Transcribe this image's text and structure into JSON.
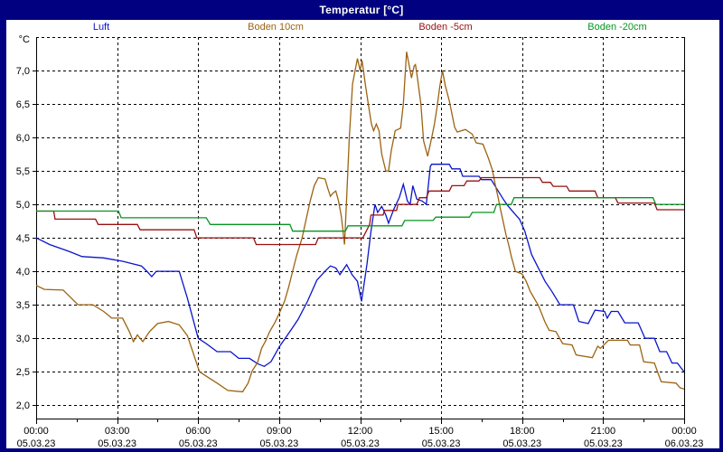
{
  "window": {
    "title": "Temperatur [°C]"
  },
  "colors": {
    "frame": "#000080",
    "panel_bg": "#ffffff",
    "grid": "#000000",
    "axis_text": "#000000",
    "luft": "#0a14cc",
    "boden10": "#9c6312",
    "boden5": "#991111",
    "boden20": "#089422"
  },
  "chart_data": {
    "type": "line",
    "title": "Temperatur [°C]",
    "y_unit_label": "°C",
    "legend": [
      {
        "label": "Luft",
        "color_key": "luft"
      },
      {
        "label": "Boden 10cm",
        "color_key": "boden10"
      },
      {
        "label": "Boden -5cm",
        "color_key": "boden5"
      },
      {
        "label": "Boden -20cm",
        "color_key": "boden20"
      }
    ],
    "x_axis": {
      "range_hours": [
        0,
        24
      ],
      "major_tick_interval_hours": 3,
      "minor_tick_interval_hours": 1.5,
      "major_ticks": [
        {
          "time": "00:00",
          "date": "05.03.23"
        },
        {
          "time": "03:00",
          "date": "05.03.23"
        },
        {
          "time": "06:00",
          "date": "05.03.23"
        },
        {
          "time": "09:00",
          "date": "05.03.23"
        },
        {
          "time": "12:00",
          "date": "05.03.23"
        },
        {
          "time": "15:00",
          "date": "05.03.23"
        },
        {
          "time": "18:00",
          "date": "05.03.23"
        },
        {
          "time": "21:00",
          "date": "05.03.23"
        },
        {
          "time": "00:00",
          "date": "06.03.23"
        }
      ]
    },
    "y_axis": {
      "min": 1.8,
      "max": 7.5,
      "gridline_step": 0.5,
      "grid_top_value": 7.5,
      "ticks": [
        {
          "value": 7.0,
          "label": "7,0"
        },
        {
          "value": 6.5,
          "label": "6,5"
        },
        {
          "value": 6.0,
          "label": "6,0"
        },
        {
          "value": 5.5,
          "label": "5,5"
        },
        {
          "value": 5.0,
          "label": "5,0"
        },
        {
          "value": 4.5,
          "label": "4,5"
        },
        {
          "value": 4.0,
          "label": "4,0"
        },
        {
          "value": 3.5,
          "label": "3,5"
        },
        {
          "value": 3.0,
          "label": "3,0"
        },
        {
          "value": 2.5,
          "label": "2,5"
        },
        {
          "value": 2.0,
          "label": "2,0"
        }
      ]
    },
    "series": [
      {
        "name": "Luft",
        "color_key": "luft",
        "points": [
          [
            0,
            4.5
          ],
          [
            0.5,
            4.4
          ],
          [
            1.2,
            4.3
          ],
          [
            1.7,
            4.22
          ],
          [
            2.5,
            4.2
          ],
          [
            3.2,
            4.15
          ],
          [
            3.9,
            4.08
          ],
          [
            4.1,
            4.0
          ],
          [
            4.28,
            3.92
          ],
          [
            4.45,
            4.0
          ],
          [
            5.3,
            4.0
          ],
          [
            5.6,
            3.6
          ],
          [
            6.0,
            3.0
          ],
          [
            6.3,
            2.92
          ],
          [
            6.7,
            2.8
          ],
          [
            7.2,
            2.8
          ],
          [
            7.5,
            2.7
          ],
          [
            7.9,
            2.7
          ],
          [
            8.2,
            2.62
          ],
          [
            8.45,
            2.58
          ],
          [
            8.7,
            2.65
          ],
          [
            9.0,
            2.87
          ],
          [
            9.4,
            3.1
          ],
          [
            9.7,
            3.28
          ],
          [
            10.05,
            3.55
          ],
          [
            10.4,
            3.87
          ],
          [
            10.7,
            4.0
          ],
          [
            10.9,
            4.08
          ],
          [
            11.1,
            4.05
          ],
          [
            11.25,
            3.95
          ],
          [
            11.5,
            4.1
          ],
          [
            11.7,
            3.95
          ],
          [
            11.9,
            3.85
          ],
          [
            12.05,
            3.55
          ],
          [
            12.25,
            4.1
          ],
          [
            12.4,
            4.6
          ],
          [
            12.55,
            5.0
          ],
          [
            12.65,
            4.88
          ],
          [
            12.8,
            4.97
          ],
          [
            12.95,
            4.84
          ],
          [
            13.05,
            4.72
          ],
          [
            13.25,
            4.93
          ],
          [
            13.45,
            5.1
          ],
          [
            13.6,
            5.3
          ],
          [
            13.75,
            5.05
          ],
          [
            13.85,
            5.0
          ],
          [
            13.95,
            5.28
          ],
          [
            14.1,
            5.08
          ],
          [
            14.3,
            5.05
          ],
          [
            14.45,
            5.0
          ],
          [
            14.6,
            5.57
          ],
          [
            14.65,
            5.6
          ],
          [
            15.3,
            5.6
          ],
          [
            15.4,
            5.53
          ],
          [
            15.7,
            5.53
          ],
          [
            15.8,
            5.42
          ],
          [
            16.4,
            5.42
          ],
          [
            16.5,
            5.37
          ],
          [
            16.85,
            5.37
          ],
          [
            17.05,
            5.24
          ],
          [
            17.3,
            5.08
          ],
          [
            17.45,
            4.99
          ],
          [
            17.7,
            4.87
          ],
          [
            17.9,
            4.78
          ],
          [
            18.1,
            4.6
          ],
          [
            18.35,
            4.25
          ],
          [
            18.6,
            4.05
          ],
          [
            18.85,
            3.85
          ],
          [
            19.1,
            3.7
          ],
          [
            19.4,
            3.5
          ],
          [
            19.9,
            3.5
          ],
          [
            20.1,
            3.25
          ],
          [
            20.45,
            3.22
          ],
          [
            20.7,
            3.42
          ],
          [
            21.05,
            3.4
          ],
          [
            21.15,
            3.3
          ],
          [
            21.3,
            3.4
          ],
          [
            21.55,
            3.4
          ],
          [
            21.8,
            3.23
          ],
          [
            22.3,
            3.23
          ],
          [
            22.55,
            3.0
          ],
          [
            22.9,
            3.0
          ],
          [
            23.1,
            2.8
          ],
          [
            23.35,
            2.8
          ],
          [
            23.55,
            2.63
          ],
          [
            23.75,
            2.63
          ],
          [
            23.9,
            2.55
          ],
          [
            24,
            2.5
          ]
        ]
      },
      {
        "name": "Boden 10cm",
        "color_key": "boden10",
        "points": [
          [
            0,
            3.79
          ],
          [
            0.3,
            3.73
          ],
          [
            1.0,
            3.72
          ],
          [
            1.3,
            3.6
          ],
          [
            1.55,
            3.5
          ],
          [
            2.1,
            3.5
          ],
          [
            2.5,
            3.4
          ],
          [
            2.8,
            3.3
          ],
          [
            3.2,
            3.3
          ],
          [
            3.45,
            3.1
          ],
          [
            3.6,
            2.95
          ],
          [
            3.75,
            3.05
          ],
          [
            3.95,
            2.95
          ],
          [
            4.2,
            3.1
          ],
          [
            4.5,
            3.22
          ],
          [
            4.9,
            3.25
          ],
          [
            5.3,
            3.2
          ],
          [
            5.6,
            3.04
          ],
          [
            5.8,
            2.8
          ],
          [
            6.05,
            2.5
          ],
          [
            6.35,
            2.42
          ],
          [
            6.7,
            2.33
          ],
          [
            7.1,
            2.22
          ],
          [
            7.65,
            2.2
          ],
          [
            7.85,
            2.33
          ],
          [
            8.0,
            2.51
          ],
          [
            8.2,
            2.64
          ],
          [
            8.35,
            2.85
          ],
          [
            8.5,
            2.96
          ],
          [
            8.65,
            3.1
          ],
          [
            8.85,
            3.24
          ],
          [
            9.0,
            3.37
          ],
          [
            9.2,
            3.55
          ],
          [
            9.35,
            3.76
          ],
          [
            9.5,
            4.0
          ],
          [
            9.65,
            4.24
          ],
          [
            9.85,
            4.5
          ],
          [
            10.0,
            4.78
          ],
          [
            10.15,
            5.05
          ],
          [
            10.3,
            5.28
          ],
          [
            10.45,
            5.4
          ],
          [
            10.7,
            5.38
          ],
          [
            10.8,
            5.24
          ],
          [
            10.9,
            5.12
          ],
          [
            11.0,
            5.17
          ],
          [
            11.1,
            5.2
          ],
          [
            11.2,
            5.05
          ],
          [
            11.3,
            4.83
          ],
          [
            11.42,
            4.4
          ],
          [
            11.5,
            5.1
          ],
          [
            11.6,
            6.0
          ],
          [
            11.72,
            6.8
          ],
          [
            11.9,
            7.18
          ],
          [
            12.0,
            7.0
          ],
          [
            12.07,
            7.15
          ],
          [
            12.2,
            6.77
          ],
          [
            12.3,
            6.5
          ],
          [
            12.42,
            6.2
          ],
          [
            12.5,
            6.1
          ],
          [
            12.6,
            6.2
          ],
          [
            12.7,
            6.1
          ],
          [
            12.8,
            5.75
          ],
          [
            12.95,
            5.5
          ],
          [
            13.05,
            5.5
          ],
          [
            13.15,
            5.8
          ],
          [
            13.3,
            6.1
          ],
          [
            13.5,
            6.14
          ],
          [
            13.6,
            6.5
          ],
          [
            13.72,
            7.28
          ],
          [
            13.85,
            7.0
          ],
          [
            13.9,
            6.89
          ],
          [
            14.0,
            7.07
          ],
          [
            14.05,
            7.09
          ],
          [
            14.12,
            6.9
          ],
          [
            14.25,
            6.5
          ],
          [
            14.35,
            5.95
          ],
          [
            14.5,
            5.72
          ],
          [
            14.65,
            6.0
          ],
          [
            14.75,
            6.2
          ],
          [
            14.85,
            6.45
          ],
          [
            14.95,
            6.76
          ],
          [
            15.05,
            7.0
          ],
          [
            15.15,
            6.78
          ],
          [
            15.3,
            6.55
          ],
          [
            15.4,
            6.35
          ],
          [
            15.5,
            6.15
          ],
          [
            15.6,
            6.08
          ],
          [
            15.75,
            6.1
          ],
          [
            15.9,
            6.12
          ],
          [
            16.15,
            6.05
          ],
          [
            16.3,
            5.92
          ],
          [
            16.55,
            5.9
          ],
          [
            16.75,
            5.69
          ],
          [
            16.9,
            5.51
          ],
          [
            17.0,
            5.3
          ],
          [
            17.1,
            5.12
          ],
          [
            17.2,
            4.92
          ],
          [
            17.3,
            4.74
          ],
          [
            17.4,
            4.55
          ],
          [
            17.5,
            4.4
          ],
          [
            17.6,
            4.22
          ],
          [
            17.75,
            4.0
          ],
          [
            18.0,
            3.96
          ],
          [
            18.15,
            3.85
          ],
          [
            18.3,
            3.7
          ],
          [
            18.6,
            3.49
          ],
          [
            18.85,
            3.24
          ],
          [
            19.0,
            3.12
          ],
          [
            19.25,
            3.1
          ],
          [
            19.5,
            2.92
          ],
          [
            19.85,
            2.9
          ],
          [
            20.0,
            2.75
          ],
          [
            20.6,
            2.71
          ],
          [
            20.8,
            2.88
          ],
          [
            20.9,
            2.85
          ],
          [
            21.2,
            2.97
          ],
          [
            21.9,
            2.97
          ],
          [
            22.0,
            2.9
          ],
          [
            22.35,
            2.9
          ],
          [
            22.5,
            2.65
          ],
          [
            22.9,
            2.63
          ],
          [
            23.05,
            2.46
          ],
          [
            23.15,
            2.35
          ],
          [
            23.7,
            2.33
          ],
          [
            23.85,
            2.26
          ],
          [
            24,
            2.24
          ]
        ]
      },
      {
        "name": "Boden -5cm",
        "color_key": "boden5",
        "points": [
          [
            0,
            4.9
          ],
          [
            0.65,
            4.9
          ],
          [
            0.7,
            4.78
          ],
          [
            2.2,
            4.78
          ],
          [
            2.3,
            4.7
          ],
          [
            3.75,
            4.7
          ],
          [
            3.85,
            4.62
          ],
          [
            5.85,
            4.62
          ],
          [
            5.95,
            4.5
          ],
          [
            8.05,
            4.5
          ],
          [
            8.15,
            4.4
          ],
          [
            10.35,
            4.4
          ],
          [
            10.45,
            4.5
          ],
          [
            12.1,
            4.5
          ],
          [
            12.35,
            4.7
          ],
          [
            12.4,
            4.84
          ],
          [
            12.85,
            4.84
          ],
          [
            12.9,
            4.91
          ],
          [
            13.35,
            4.91
          ],
          [
            13.4,
            5.0
          ],
          [
            14.1,
            5.0
          ],
          [
            14.2,
            5.1
          ],
          [
            14.45,
            5.1
          ],
          [
            14.55,
            5.2
          ],
          [
            15.3,
            5.2
          ],
          [
            15.4,
            5.28
          ],
          [
            15.85,
            5.28
          ],
          [
            15.95,
            5.35
          ],
          [
            16.4,
            5.35
          ],
          [
            16.5,
            5.4
          ],
          [
            18.65,
            5.4
          ],
          [
            18.75,
            5.33
          ],
          [
            19.05,
            5.33
          ],
          [
            19.15,
            5.27
          ],
          [
            19.65,
            5.27
          ],
          [
            19.75,
            5.2
          ],
          [
            20.7,
            5.2
          ],
          [
            20.8,
            5.1
          ],
          [
            21.45,
            5.1
          ],
          [
            21.55,
            5.02
          ],
          [
            22.9,
            5.02
          ],
          [
            23.0,
            4.92
          ],
          [
            24,
            4.92
          ]
        ]
      },
      {
        "name": "Boden -20cm",
        "color_key": "boden20",
        "points": [
          [
            0,
            4.9
          ],
          [
            3.05,
            4.9
          ],
          [
            3.15,
            4.8
          ],
          [
            6.3,
            4.8
          ],
          [
            6.45,
            4.7
          ],
          [
            9.4,
            4.7
          ],
          [
            9.5,
            4.6
          ],
          [
            11.45,
            4.6
          ],
          [
            11.55,
            4.68
          ],
          [
            13.55,
            4.68
          ],
          [
            13.65,
            4.76
          ],
          [
            14.7,
            4.76
          ],
          [
            14.8,
            4.81
          ],
          [
            16.05,
            4.81
          ],
          [
            16.15,
            4.88
          ],
          [
            16.95,
            4.88
          ],
          [
            17.05,
            5.0
          ],
          [
            17.6,
            5.0
          ],
          [
            17.7,
            5.1
          ],
          [
            22.85,
            5.1
          ],
          [
            22.95,
            5.0
          ],
          [
            24,
            5.0
          ]
        ]
      }
    ]
  }
}
